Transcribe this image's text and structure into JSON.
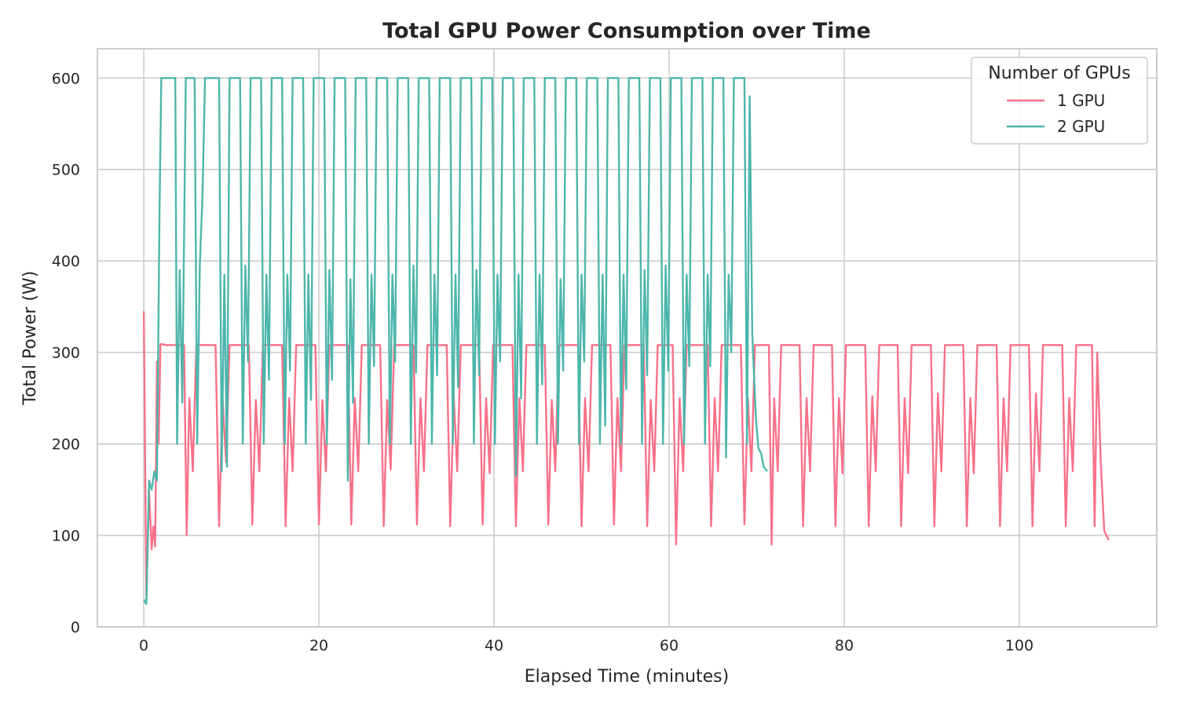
{
  "chart_data": {
    "type": "line",
    "title": "Total GPU Power Consumption over Time",
    "xlabel": "Elapsed Time (minutes)",
    "ylabel": "Total Power (W)",
    "xlim": [
      -5.3,
      115.7
    ],
    "ylim": [
      0,
      632
    ],
    "xticks": [
      0,
      20,
      40,
      60,
      80,
      100
    ],
    "yticks": [
      0,
      100,
      200,
      300,
      400,
      500,
      600
    ],
    "grid": true,
    "legend": {
      "title": "Number of GPUs",
      "position": "top-right"
    },
    "series": [
      {
        "name": "1 GPU",
        "color": "#f77189",
        "x": [
          0,
          0.3,
          0.6,
          0.9,
          1.1,
          1.3,
          1.5,
          1.7,
          1.9,
          2.2,
          2.5,
          4.6,
          4.9,
          5.2,
          5.6,
          6.0,
          8.2,
          8.6,
          9.0,
          9.4,
          9.8,
          12.0,
          12.4,
          12.8,
          13.2,
          13.6,
          15.8,
          16.2,
          16.6,
          17.0,
          17.4,
          19.6,
          20.0,
          20.4,
          20.8,
          21.2,
          23.3,
          23.7,
          24.1,
          24.5,
          24.9,
          27.0,
          27.4,
          27.8,
          28.2,
          28.6,
          30.8,
          31.2,
          31.6,
          32.0,
          32.4,
          34.6,
          35.0,
          35.4,
          35.8,
          36.2,
          38.3,
          38.7,
          39.1,
          39.5,
          39.9,
          42.1,
          42.5,
          42.9,
          43.3,
          43.7,
          45.8,
          46.2,
          46.6,
          47.0,
          47.4,
          49.6,
          50.0,
          50.4,
          50.8,
          51.2,
          53.3,
          53.7,
          54.1,
          54.5,
          54.9,
          57.1,
          57.5,
          57.9,
          58.3,
          58.7,
          60.4,
          60.8,
          61.2,
          61.6,
          62.0,
          64.4,
          64.8,
          65.2,
          65.6,
          66.0,
          68.2,
          68.6,
          69.0,
          69.4,
          69.8,
          71.4,
          71.7,
          72.0,
          72.4,
          72.8,
          74.9,
          75.3,
          75.7,
          76.1,
          76.5,
          78.6,
          79.0,
          79.4,
          79.8,
          80.2,
          82.4,
          82.8,
          83.2,
          83.6,
          84.0,
          86.1,
          86.5,
          86.9,
          87.3,
          87.7,
          89.9,
          90.3,
          90.7,
          91.1,
          91.5,
          93.6,
          94.0,
          94.4,
          94.8,
          95.2,
          97.4,
          97.8,
          98.2,
          98.6,
          99.0,
          101.1,
          101.5,
          101.9,
          102.3,
          102.7,
          104.9,
          105.3,
          105.7,
          106.1,
          106.5,
          108.3,
          108.6,
          108.9,
          109.3,
          109.7,
          110.2
        ],
        "y": [
          345,
          30,
          150,
          85,
          110,
          88,
          290,
          200,
          309,
          309,
          308,
          308,
          100,
          250,
          170,
          308,
          308,
          110,
          250,
          180,
          308,
          308,
          112,
          248,
          170,
          308,
          308,
          110,
          250,
          170,
          308,
          308,
          112,
          248,
          170,
          308,
          308,
          112,
          250,
          170,
          308,
          308,
          110,
          248,
          172,
          308,
          308,
          112,
          250,
          170,
          308,
          308,
          110,
          252,
          170,
          308,
          308,
          112,
          250,
          168,
          308,
          308,
          110,
          250,
          170,
          308,
          308,
          112,
          248,
          170,
          308,
          308,
          110,
          250,
          170,
          308,
          308,
          112,
          250,
          170,
          308,
          308,
          110,
          248,
          170,
          308,
          308,
          90,
          250,
          170,
          308,
          308,
          110,
          250,
          170,
          308,
          308,
          112,
          250,
          170,
          308,
          308,
          90,
          250,
          170,
          308,
          308,
          110,
          250,
          170,
          308,
          308,
          110,
          250,
          168,
          308,
          308,
          110,
          252,
          170,
          308,
          308,
          110,
          250,
          168,
          308,
          308,
          110,
          255,
          170,
          308,
          308,
          110,
          250,
          168,
          308,
          308,
          110,
          250,
          170,
          308,
          308,
          110,
          255,
          170,
          308,
          308,
          110,
          250,
          170,
          308,
          308,
          110,
          300,
          180,
          105,
          95
        ]
      },
      {
        "name": "2 GPU",
        "color": "#4db6ac",
        "x": [
          0,
          0.3,
          0.6,
          0.9,
          1.2,
          1.5,
          1.8,
          2.0,
          2.2,
          2.5,
          3.6,
          3.8,
          4.1,
          4.4,
          4.8,
          5.8,
          6.1,
          6.4,
          6.7,
          7.0,
          8.6,
          8.9,
          9.2,
          9.5,
          9.8,
          11.0,
          11.3,
          11.6,
          11.9,
          12.2,
          13.4,
          13.7,
          14.0,
          14.3,
          14.6,
          15.8,
          16.1,
          16.4,
          16.7,
          17.0,
          18.2,
          18.5,
          18.8,
          19.1,
          19.4,
          20.6,
          20.9,
          21.2,
          21.5,
          21.8,
          23.0,
          23.3,
          23.6,
          23.9,
          24.2,
          25.4,
          25.7,
          26.0,
          26.3,
          26.6,
          27.8,
          28.1,
          28.4,
          28.7,
          29.0,
          30.2,
          30.5,
          30.8,
          31.1,
          31.4,
          32.6,
          32.9,
          33.2,
          33.5,
          33.8,
          35.0,
          35.3,
          35.6,
          35.9,
          36.2,
          37.4,
          37.7,
          38.0,
          38.3,
          38.6,
          39.8,
          40.1,
          40.4,
          40.7,
          41.0,
          42.2,
          42.5,
          42.8,
          43.1,
          43.4,
          44.6,
          44.9,
          45.2,
          45.5,
          45.8,
          47.0,
          47.3,
          47.6,
          47.9,
          48.2,
          49.4,
          49.7,
          50.0,
          50.3,
          50.6,
          51.8,
          52.1,
          52.4,
          52.7,
          53.0,
          54.2,
          54.5,
          54.8,
          55.1,
          55.4,
          56.6,
          56.9,
          57.2,
          57.5,
          57.8,
          59.0,
          59.3,
          59.6,
          59.9,
          60.2,
          61.4,
          61.7,
          62.0,
          62.3,
          62.6,
          63.8,
          64.1,
          64.4,
          64.7,
          65.0,
          66.2,
          66.5,
          66.8,
          67.1,
          67.4,
          68.6,
          68.9,
          69.2,
          69.5,
          69.9,
          70.2,
          70.5,
          70.8,
          71.2
        ],
        "y": [
          30,
          25,
          160,
          150,
          170,
          160,
          460,
          600,
          600,
          600,
          600,
          200,
          390,
          245,
          600,
          600,
          200,
          395,
          470,
          600,
          600,
          170,
          385,
          175,
          600,
          600,
          200,
          395,
          290,
          600,
          600,
          200,
          385,
          270,
          600,
          600,
          200,
          385,
          280,
          600,
          600,
          200,
          385,
          248,
          600,
          600,
          200,
          390,
          270,
          600,
          600,
          160,
          380,
          245,
          600,
          600,
          200,
          385,
          285,
          600,
          600,
          200,
          385,
          290,
          600,
          600,
          200,
          395,
          278,
          600,
          600,
          200,
          385,
          275,
          600,
          600,
          200,
          385,
          262,
          600,
          600,
          200,
          390,
          275,
          600,
          600,
          200,
          385,
          290,
          600,
          600,
          165,
          385,
          250,
          600,
          600,
          200,
          385,
          265,
          600,
          600,
          200,
          380,
          280,
          600,
          600,
          200,
          385,
          290,
          600,
          600,
          200,
          385,
          220,
          600,
          600,
          200,
          385,
          260,
          600,
          600,
          200,
          390,
          275,
          600,
          600,
          200,
          395,
          280,
          600,
          600,
          200,
          385,
          285,
          600,
          600,
          200,
          385,
          285,
          600,
          600,
          185,
          385,
          300,
          600,
          600,
          200,
          580,
          320,
          230,
          195,
          190,
          175,
          170
        ]
      }
    ]
  }
}
